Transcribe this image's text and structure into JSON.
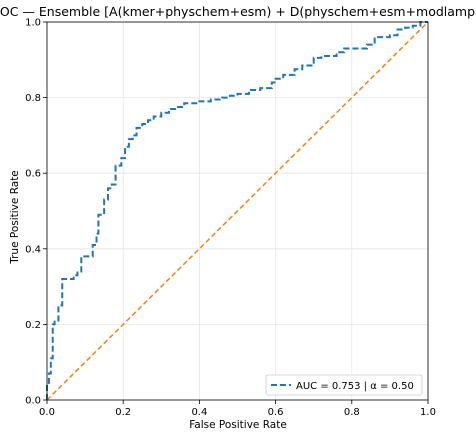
{
  "chart_data": {
    "type": "line",
    "title": "ROC — Ensemble [A(kmer+physchem+esm) + D(physchem+esm+modlamp)]",
    "xlabel": "False Positive Rate",
    "ylabel": "True Positive Rate",
    "xlim": [
      0.0,
      1.0
    ],
    "ylim": [
      0.0,
      1.0
    ],
    "xticks": [
      "0.0",
      "0.2",
      "0.4",
      "0.6",
      "0.8",
      "1.0"
    ],
    "yticks": [
      "0.0",
      "0.2",
      "0.4",
      "0.6",
      "0.8",
      "1.0"
    ],
    "grid": true,
    "legend_position": "lower-right",
    "series": [
      {
        "name": "AUC = 0.753  |  α = 0.50",
        "color": "#1f77b4",
        "style": "dashed-step",
        "x": [
          0.0,
          0.0,
          0.005,
          0.005,
          0.01,
          0.01,
          0.015,
          0.015,
          0.02,
          0.02,
          0.03,
          0.03,
          0.04,
          0.04,
          0.05,
          0.05,
          0.07,
          0.07,
          0.08,
          0.08,
          0.09,
          0.09,
          0.095,
          0.095,
          0.12,
          0.12,
          0.13,
          0.13,
          0.135,
          0.135,
          0.15,
          0.15,
          0.16,
          0.16,
          0.17,
          0.17,
          0.18,
          0.18,
          0.195,
          0.195,
          0.205,
          0.205,
          0.215,
          0.215,
          0.225,
          0.225,
          0.235,
          0.235,
          0.25,
          0.25,
          0.265,
          0.265,
          0.28,
          0.28,
          0.3,
          0.3,
          0.32,
          0.32,
          0.34,
          0.34,
          0.36,
          0.36,
          0.38,
          0.38,
          0.4,
          0.4,
          0.43,
          0.43,
          0.46,
          0.46,
          0.48,
          0.48,
          0.5,
          0.5,
          0.53,
          0.53,
          0.56,
          0.56,
          0.59,
          0.59,
          0.6,
          0.6,
          0.62,
          0.62,
          0.65,
          0.65,
          0.67,
          0.67,
          0.7,
          0.7,
          0.72,
          0.72,
          0.76,
          0.76,
          0.78,
          0.78,
          0.84,
          0.84,
          0.86,
          0.86,
          0.9,
          0.9,
          0.92,
          0.92,
          0.94,
          0.94,
          0.96,
          0.96,
          0.98,
          0.98,
          1.0
        ],
        "y": [
          0.0,
          0.04,
          0.04,
          0.07,
          0.07,
          0.11,
          0.11,
          0.2,
          0.2,
          0.21,
          0.21,
          0.25,
          0.25,
          0.32,
          0.32,
          0.32,
          0.32,
          0.33,
          0.33,
          0.34,
          0.34,
          0.38,
          0.38,
          0.38,
          0.38,
          0.41,
          0.41,
          0.44,
          0.44,
          0.49,
          0.49,
          0.53,
          0.53,
          0.56,
          0.56,
          0.57,
          0.57,
          0.62,
          0.62,
          0.64,
          0.64,
          0.67,
          0.67,
          0.69,
          0.69,
          0.7,
          0.7,
          0.72,
          0.72,
          0.73,
          0.73,
          0.74,
          0.74,
          0.75,
          0.75,
          0.76,
          0.76,
          0.77,
          0.77,
          0.775,
          0.775,
          0.785,
          0.785,
          0.785,
          0.785,
          0.79,
          0.79,
          0.795,
          0.795,
          0.8,
          0.8,
          0.805,
          0.805,
          0.81,
          0.81,
          0.82,
          0.82,
          0.825,
          0.825,
          0.84,
          0.84,
          0.85,
          0.85,
          0.86,
          0.86,
          0.875,
          0.875,
          0.885,
          0.885,
          0.905,
          0.905,
          0.91,
          0.91,
          0.92,
          0.92,
          0.93,
          0.93,
          0.94,
          0.94,
          0.96,
          0.96,
          0.965,
          0.965,
          0.98,
          0.98,
          0.985,
          0.985,
          0.99,
          0.99,
          1.0,
          1.0
        ]
      },
      {
        "color": "#ff7f0e",
        "style": "dashed",
        "x": [
          0.0,
          1.0
        ],
        "y": [
          0.0,
          1.0
        ]
      }
    ]
  }
}
